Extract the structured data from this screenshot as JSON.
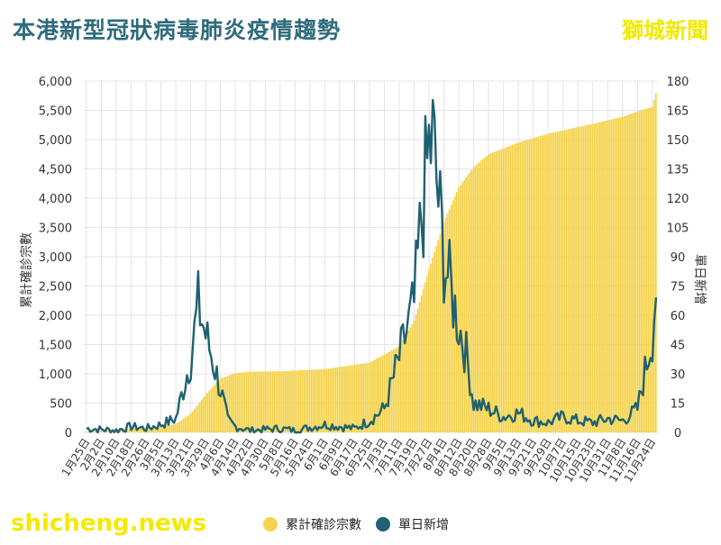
{
  "title": "本港新型冠狀病毒肺炎疫情趨勢",
  "brand": "獅城新聞",
  "watermark": "shicheng.news",
  "colors": {
    "cumulative": "#f5d34c",
    "daily": "#1f6172",
    "title": "#2f6b7d",
    "brand": "#f2e800",
    "grid": "#e4e4e4"
  },
  "chart_data": {
    "type": "bar+line",
    "title": "本港新型冠狀病毒肺炎疫情趨勢",
    "y_left_label": "累計確診宗數",
    "y_right_label": "單日新增",
    "y_left_range": [
      0,
      6000
    ],
    "y_right_range": [
      0,
      180
    ],
    "y_left_ticks": [
      "0",
      "500",
      "1,000",
      "1,500",
      "2,000",
      "2,500",
      "3,000",
      "3,500",
      "4,000",
      "4,500",
      "5,000",
      "5,500",
      "6,000"
    ],
    "y_right_ticks": [
      "0",
      "15",
      "30",
      "45",
      "60",
      "75",
      "90",
      "105",
      "120",
      "135",
      "150",
      "165",
      "180"
    ],
    "x_tick_labels": [
      "1月25日",
      "2月2日",
      "2月10日",
      "2月18日",
      "2月26日",
      "3月5日",
      "3月13日",
      "3月21日",
      "3月29日",
      "4月6日",
      "4月14日",
      "4月22日",
      "4月30日",
      "5月8日",
      "5月16日",
      "5月24日",
      "6月1日",
      "6月9日",
      "6月17日",
      "6月25日",
      "7月3日",
      "7月11日",
      "7月19日",
      "7月27日",
      "8月4日",
      "8月12日",
      "8月20日",
      "8月28日",
      "9月5日",
      "9月13日",
      "9月21日",
      "9月29日",
      "10月7日",
      "10月15日",
      "10月23日",
      "10月31日",
      "11月8日",
      "11月16日",
      "11月24日"
    ],
    "grid": true,
    "legend_position": "bottom",
    "series": [
      {
        "name": "累計確診宗數",
        "type": "bar",
        "axis": "left",
        "keypoints": [
          {
            "x": "1月25日",
            "y": 10
          },
          {
            "x": "2月18日",
            "y": 65
          },
          {
            "x": "3月5日",
            "y": 105
          },
          {
            "x": "3月13日",
            "y": 140
          },
          {
            "x": "3月21日",
            "y": 320
          },
          {
            "x": "3月29日",
            "y": 640
          },
          {
            "x": "4月6日",
            "y": 920
          },
          {
            "x": "4月14日",
            "y": 1012
          },
          {
            "x": "4月22日",
            "y": 1036
          },
          {
            "x": "5月8日",
            "y": 1045
          },
          {
            "x": "6月1日",
            "y": 1080
          },
          {
            "x": "6月25日",
            "y": 1190
          },
          {
            "x": "7月11日",
            "y": 1470
          },
          {
            "x": "7月19日",
            "y": 1900
          },
          {
            "x": "7月27日",
            "y": 2780
          },
          {
            "x": "8月4日",
            "y": 3590
          },
          {
            "x": "8月12日",
            "y": 4180
          },
          {
            "x": "8月20日",
            "y": 4530
          },
          {
            "x": "8月28日",
            "y": 4750
          },
          {
            "x": "9月13日",
            "y": 4950
          },
          {
            "x": "9月29日",
            "y": 5100
          },
          {
            "x": "10月23日",
            "y": 5270
          },
          {
            "x": "11月8日",
            "y": 5390
          },
          {
            "x": "11月16日",
            "y": 5480
          },
          {
            "x": "11月24日",
            "y": 5560
          },
          {
            "x": "11月26日",
            "y": 5800
          }
        ]
      },
      {
        "name": "單日新增",
        "type": "line",
        "axis": "right",
        "keypoints": [
          {
            "x": "1月25日",
            "y": 2
          },
          {
            "x": "2月10日",
            "y": 1
          },
          {
            "x": "2月18日",
            "y": 3
          },
          {
            "x": "2月26日",
            "y": 2
          },
          {
            "x": "3月5日",
            "y": 4
          },
          {
            "x": "3月13日",
            "y": 7
          },
          {
            "x": "3月21日",
            "y": 38
          },
          {
            "x": "3月25日",
            "y": 65
          },
          {
            "x": "3月29日",
            "y": 50
          },
          {
            "x": "4月1日",
            "y": 40
          },
          {
            "x": "4月6日",
            "y": 22
          },
          {
            "x": "4月10日",
            "y": 6
          },
          {
            "x": "4月14日",
            "y": 3
          },
          {
            "x": "4月22日",
            "y": 1
          },
          {
            "x": "5月8日",
            "y": 2
          },
          {
            "x": "5月16日",
            "y": 1
          },
          {
            "x": "6月1日",
            "y": 4
          },
          {
            "x": "6月9日",
            "y": 3
          },
          {
            "x": "6月17日",
            "y": 2
          },
          {
            "x": "6月25日",
            "y": 6
          },
          {
            "x": "7月3日",
            "y": 12
          },
          {
            "x": "7月11日",
            "y": 38
          },
          {
            "x": "7月19日",
            "y": 65
          },
          {
            "x": "7月23日",
            "y": 110
          },
          {
            "x": "7月27日",
            "y": 145
          },
          {
            "x": "7月29日",
            "y": 149
          },
          {
            "x": "8月4日",
            "y": 90
          },
          {
            "x": "8月8日",
            "y": 72
          },
          {
            "x": "8月12日",
            "y": 55
          },
          {
            "x": "8月16日",
            "y": 40
          },
          {
            "x": "8月20日",
            "y": 15
          },
          {
            "x": "8月28日",
            "y": 12
          },
          {
            "x": "9月5日",
            "y": 8
          },
          {
            "x": "9月13日",
            "y": 10
          },
          {
            "x": "9月21日",
            "y": 6
          },
          {
            "x": "9月29日",
            "y": 5
          },
          {
            "x": "10月7日",
            "y": 8
          },
          {
            "x": "10月15日",
            "y": 6
          },
          {
            "x": "10月23日",
            "y": 5
          },
          {
            "x": "10月31日",
            "y": 7
          },
          {
            "x": "11月8日",
            "y": 6
          },
          {
            "x": "11月16日",
            "y": 12
          },
          {
            "x": "11月24日",
            "y": 50
          },
          {
            "x": "11月26日",
            "y": 76
          }
        ]
      }
    ]
  }
}
